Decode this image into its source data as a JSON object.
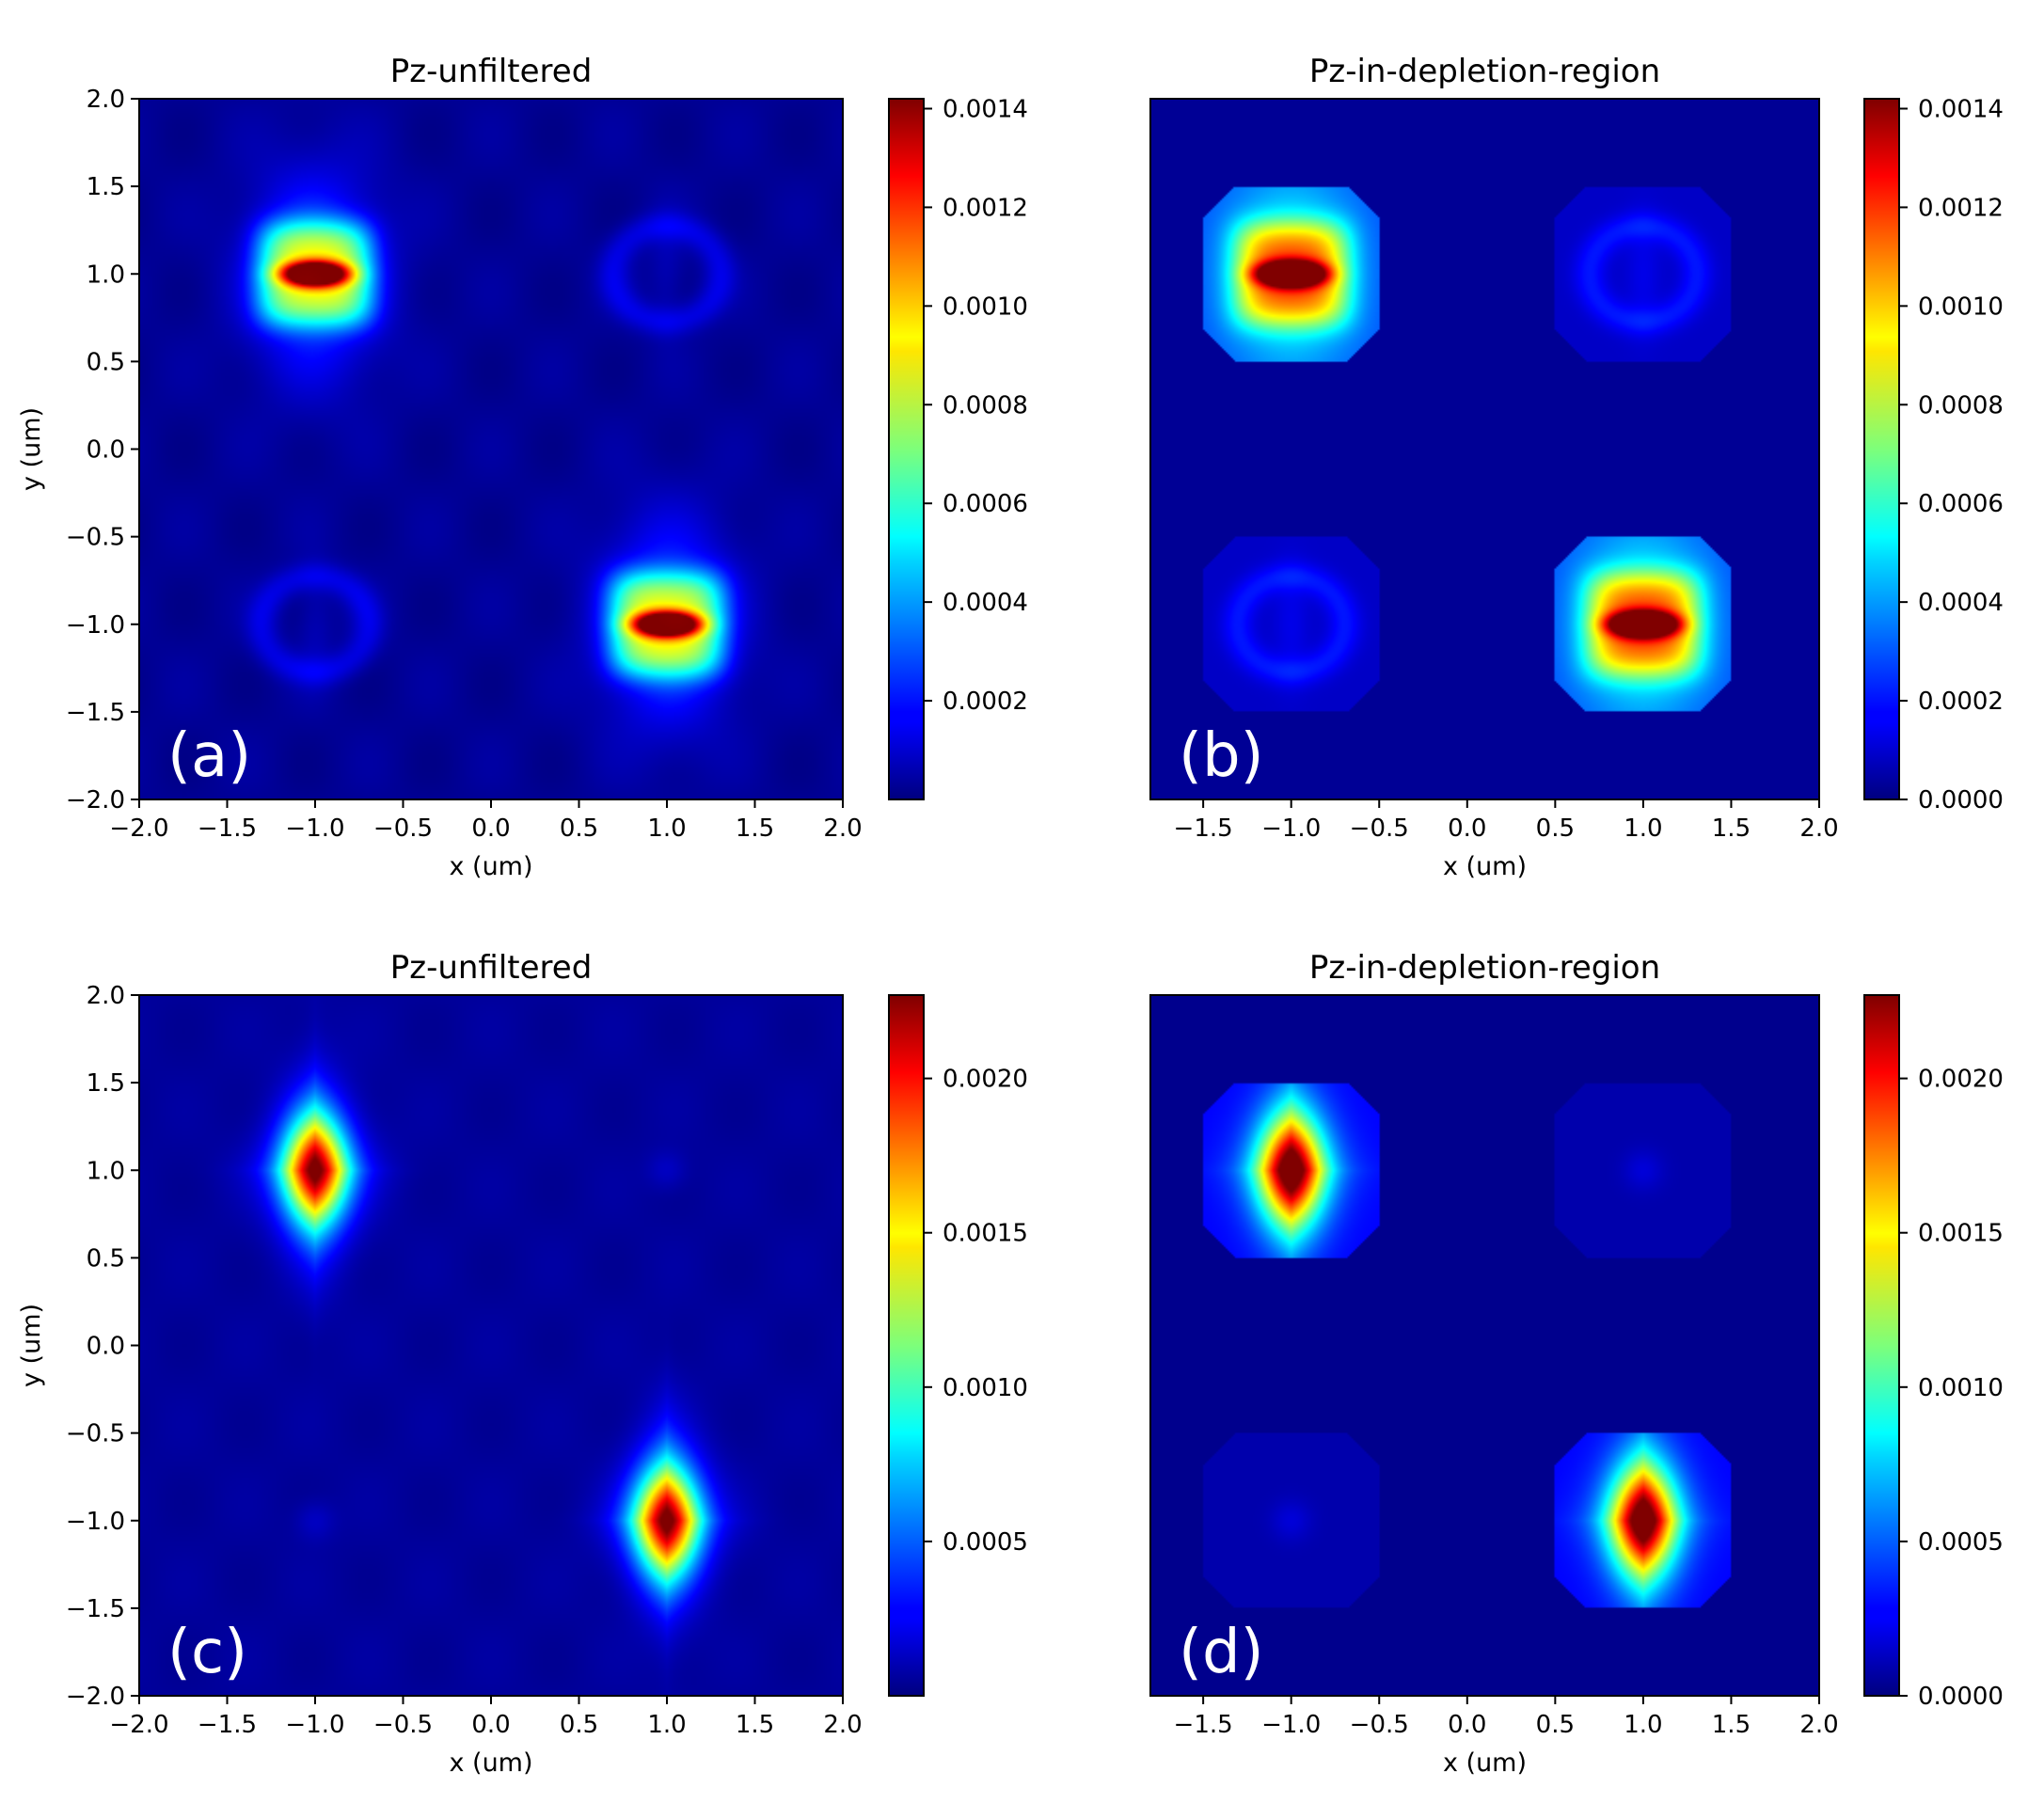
{
  "figure": {
    "background": "#ffffff",
    "colormap": "jet"
  },
  "chart_data": [
    {
      "type": "heatmap",
      "panel_label": "(a)",
      "title": "Pz-unfiltered",
      "xlabel": "x (um)",
      "ylabel": "y (um)",
      "xlim": [
        -2.0,
        2.0
      ],
      "ylim": [
        -2.0,
        2.0
      ],
      "xticks": [
        "−2.0",
        "−1.5",
        "−1.0",
        "−0.5",
        "0.0",
        "0.5",
        "1.0",
        "1.5",
        "2.0"
      ],
      "yticks": [
        "−2.0",
        "−1.5",
        "−1.0",
        "−0.5",
        "0.0",
        "0.5",
        "1.0",
        "1.5",
        "2.0"
      ],
      "colorbar": {
        "min": 0.0,
        "max": 0.00142,
        "ticks": [
          "0.0002",
          "0.0004",
          "0.0006",
          "0.0008",
          "0.0010",
          "0.0012",
          "0.0014"
        ]
      },
      "spots": [
        {
          "x": -1.0,
          "y": 1.0,
          "peak": 0.0014,
          "shape": "horizontal-bar"
        },
        {
          "x": 1.0,
          "y": -1.0,
          "peak": 0.0014,
          "shape": "horizontal-bar"
        },
        {
          "x": 1.0,
          "y": 1.0,
          "peak": 0.00012,
          "shape": "faint-ring"
        },
        {
          "x": -1.0,
          "y": -1.0,
          "peak": 0.00012,
          "shape": "faint-ring"
        }
      ],
      "clip_to_depletion_region": false,
      "background_value": 3e-05
    },
    {
      "type": "heatmap",
      "panel_label": "(b)",
      "title": "Pz-in-depletion-region",
      "xlabel": "x (um)",
      "ylabel": "",
      "xlim": [
        -1.8,
        2.0
      ],
      "ylim": [
        -2.0,
        2.0
      ],
      "xticks": [
        "−1.5",
        "−1.0",
        "−0.5",
        "0.0",
        "0.5",
        "1.0",
        "1.5",
        "2.0"
      ],
      "yticks": [],
      "colorbar": {
        "min": 0.0,
        "max": 0.00142,
        "ticks": [
          "0.0000",
          "0.0002",
          "0.0004",
          "0.0006",
          "0.0008",
          "0.0010",
          "0.0012",
          "0.0014"
        ]
      },
      "spots": [
        {
          "x": -1.0,
          "y": 1.0,
          "peak": 0.0014,
          "shape": "horizontal-bar"
        },
        {
          "x": 1.0,
          "y": -1.0,
          "peak": 0.0014,
          "shape": "horizontal-bar"
        },
        {
          "x": 1.0,
          "y": 1.0,
          "peak": 0.00012,
          "shape": "faint-ring"
        },
        {
          "x": -1.0,
          "y": -1.0,
          "peak": 0.00012,
          "shape": "faint-ring"
        }
      ],
      "clip_to_depletion_region": true,
      "background_value": 3e-05
    },
    {
      "type": "heatmap",
      "panel_label": "(c)",
      "title": "Pz-unfiltered",
      "xlabel": "x (um)",
      "ylabel": "y (um)",
      "xlim": [
        -2.0,
        2.0
      ],
      "ylim": [
        -2.0,
        2.0
      ],
      "xticks": [
        "−2.0",
        "−1.5",
        "−1.0",
        "−0.5",
        "0.0",
        "0.5",
        "1.0",
        "1.5",
        "2.0"
      ],
      "yticks": [
        "−2.0",
        "−1.5",
        "−1.0",
        "−0.5",
        "0.0",
        "0.5",
        "1.0",
        "1.5",
        "2.0"
      ],
      "colorbar": {
        "min": 0.0,
        "max": 0.00227,
        "ticks": [
          "0.0005",
          "0.0010",
          "0.0015",
          "0.0020"
        ]
      },
      "spots": [
        {
          "x": -1.0,
          "y": 1.0,
          "peak": 0.00225,
          "shape": "vertical-diamond"
        },
        {
          "x": 1.0,
          "y": -1.0,
          "peak": 0.00225,
          "shape": "vertical-diamond"
        },
        {
          "x": 1.0,
          "y": 1.0,
          "peak": 0.0001,
          "shape": "faint-dot"
        },
        {
          "x": -1.0,
          "y": -1.0,
          "peak": 0.0001,
          "shape": "faint-dot"
        }
      ],
      "clip_to_depletion_region": false,
      "background_value": 6e-05
    },
    {
      "type": "heatmap",
      "panel_label": "(d)",
      "title": "Pz-in-depletion-region",
      "xlabel": "x (um)",
      "ylabel": "",
      "xlim": [
        -1.8,
        2.0
      ],
      "ylim": [
        -2.0,
        2.0
      ],
      "xticks": [
        "−1.5",
        "−1.0",
        "−0.5",
        "0.0",
        "0.5",
        "1.0",
        "1.5",
        "2.0"
      ],
      "yticks": [],
      "colorbar": {
        "min": 0.0,
        "max": 0.00227,
        "ticks": [
          "0.0000",
          "0.0005",
          "0.0010",
          "0.0015",
          "0.0020"
        ]
      },
      "spots": [
        {
          "x": -1.0,
          "y": 1.0,
          "peak": 0.00225,
          "shape": "vertical-diamond"
        },
        {
          "x": 1.0,
          "y": -1.0,
          "peak": 0.00225,
          "shape": "vertical-diamond"
        },
        {
          "x": 1.0,
          "y": 1.0,
          "peak": 0.0001,
          "shape": "faint-dot"
        },
        {
          "x": -1.0,
          "y": -1.0,
          "peak": 0.0001,
          "shape": "faint-dot"
        }
      ],
      "clip_to_depletion_region": true,
      "background_value": 3e-05
    }
  ]
}
